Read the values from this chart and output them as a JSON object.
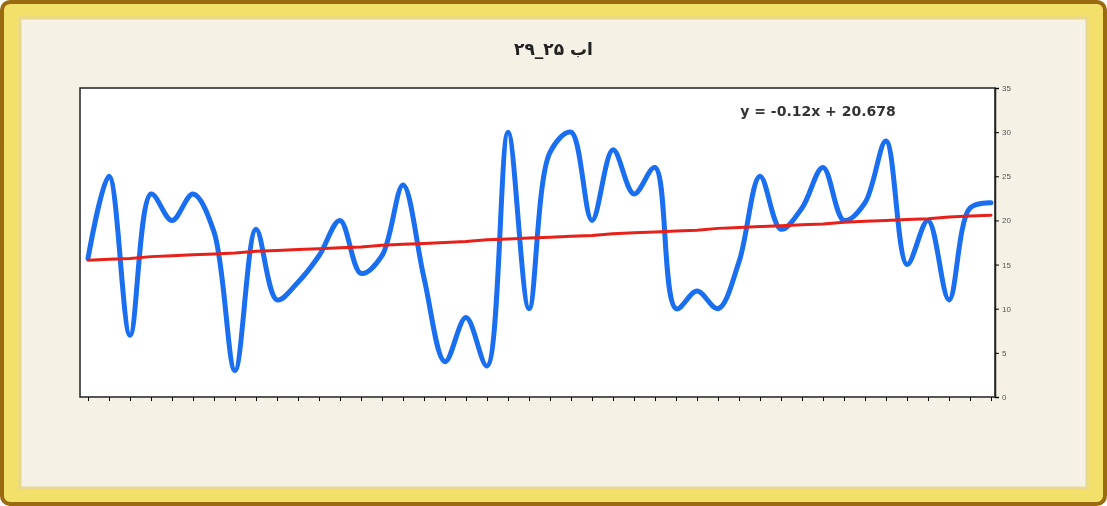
{
  "chart_data": {
    "type": "line",
    "title": "اب ۲۵_۲۹",
    "categories": [
      null,
      null,
      null,
      null,
      null,
      null,
      null,
      null,
      null,
      null,
      null,
      null,
      null,
      null,
      null,
      null,
      null,
      null,
      null,
      null,
      null,
      null,
      null,
      null,
      null,
      null,
      null,
      null,
      null,
      null,
      null,
      null,
      null,
      null,
      null,
      null,
      null,
      null,
      null,
      null,
      null,
      null,
      null,
      null
    ],
    "series": [
      {
        "color": "#1a6ef0",
        "values": [
          15.7,
          25,
          7,
          23,
          20,
          23,
          18.7,
          3,
          19,
          11,
          13,
          16,
          20,
          14,
          16,
          24,
          13.5,
          4,
          9,
          3.5,
          30,
          10,
          27.7,
          30,
          20,
          28,
          23,
          26,
          10,
          12,
          10,
          15.3,
          25,
          19,
          21.4,
          26,
          20,
          22,
          29,
          15,
          20,
          11,
          21.4,
          22
        ]
      },
      {
        "type": "line",
        "color": "#e8201a",
        "values": [
          15.5,
          15.6,
          15.7,
          15.9,
          16,
          16.1,
          16.2,
          16.3,
          16.5,
          16.6,
          16.7,
          16.8,
          16.9,
          17.0,
          17.2,
          17.3,
          17.4,
          17.5,
          17.6,
          17.8,
          17.9,
          18,
          18.1,
          18.2,
          18.3,
          18.5,
          18.6,
          18.7,
          18.8,
          18.9,
          19.1,
          19.2,
          19.3,
          19.4,
          19.5,
          19.6,
          19.8,
          19.9,
          20,
          20.1,
          20.2,
          20.4,
          20.5,
          20.6
        ]
      }
    ],
    "ylim": [
      0,
      35
    ],
    "yticks": [
      0,
      5,
      10,
      15,
      20,
      25,
      30,
      35
    ],
    "annotations": [
      "y = -0.12x + 20.678"
    ]
  }
}
